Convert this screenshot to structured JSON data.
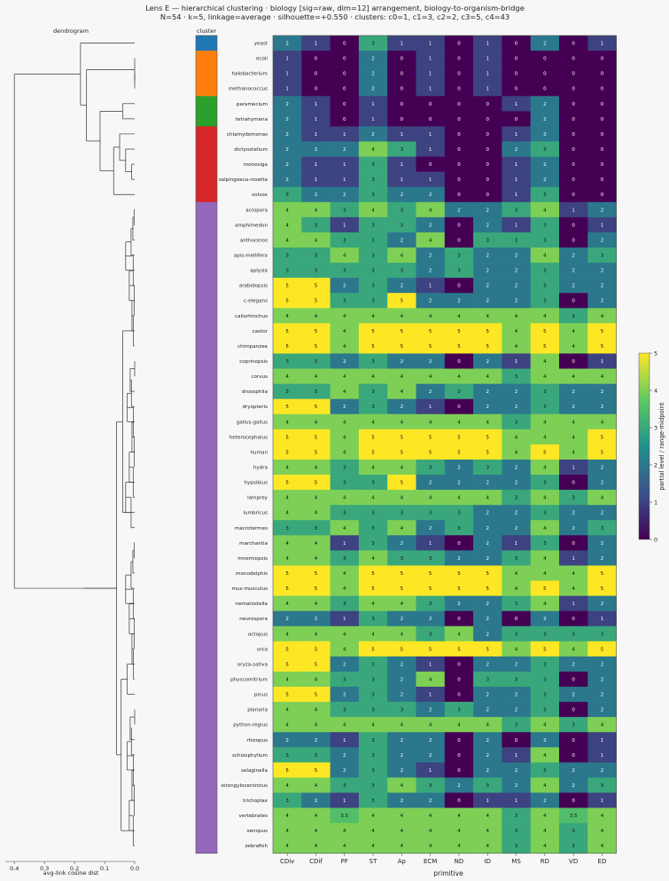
{
  "colors": {
    "viridis": [
      "#440154",
      "#3b528b",
      "#21918c",
      "#5ec962",
      "#fde725"
    ],
    "clusters": [
      "#1f77b4",
      "#ff7f0e",
      "#2ca02c",
      "#d62728",
      "#9467bd"
    ],
    "dendro_line": "#333333"
  },
  "chart_data": {
    "type": "heatmap",
    "title_line1": "Lens E — hierarchical clustering · biology [sig=raw, dim=12] arrangement, biology-to-organism-bridge",
    "title_line2": "N=54 · k=5, linkage=average · silhouette=+0.550 · clusters: c0=1, c1=3, c2=2, c3=5, c4=43",
    "dendrogram_title": "dendrogram",
    "dendrogram_xlabel": "avg-link cosine dist",
    "dendrogram_ticks": [
      "0.4",
      "0.3",
      "0.2",
      "0.1",
      "0.0"
    ],
    "dendrogram_range": [
      0.43,
      0.0
    ],
    "cluster_title": "cluster",
    "xlabel": "primitive",
    "colorbar_label": "partial level / range-midpoint",
    "colorbar_ticks": [
      "0",
      "1",
      "2",
      "3",
      "4",
      "5"
    ],
    "vmin": 0,
    "vmax": 5,
    "columns": [
      "CDiv",
      "CDif",
      "PF",
      "ST",
      "Ap",
      "ECM",
      "ND",
      "ID",
      "MS",
      "RD",
      "VD",
      "ED"
    ],
    "rows": [
      "yeast",
      "ecoli",
      "halobacterium",
      "methanococcus",
      "paramecium",
      "tetrahymena",
      "chlamydomonas",
      "dictyostelium",
      "monosiga",
      "salpingoeca-rosetta",
      "volvox",
      "acropora",
      "amphimedon",
      "anthoceros",
      "apis-mellifera",
      "aplysia",
      "arabidopsis",
      "c-elegans",
      "callorhinchus",
      "castor",
      "chimpanzee",
      "coprinopsis",
      "corvus",
      "drosophila",
      "dryopteris",
      "gallus-gallus",
      "heterocephalus",
      "human",
      "hydra",
      "hypsibius",
      "lamprey",
      "lumbricus",
      "macrotermes",
      "marchantia",
      "mnemiopsis",
      "monodelphis",
      "mus-musculus",
      "nematostella",
      "neurospora",
      "octopus",
      "orca",
      "oryza-sativa",
      "physcomitrium",
      "pinus",
      "planaria",
      "python-regius",
      "rhizopus",
      "schizophyllum",
      "selaginella",
      "strongylocentrotus",
      "trichoplax",
      "vertebrates",
      "xenopus",
      "zebrafish"
    ],
    "row_clusters": [
      0,
      1,
      1,
      1,
      2,
      2,
      3,
      3,
      3,
      3,
      3,
      4,
      4,
      4,
      4,
      4,
      4,
      4,
      4,
      4,
      4,
      4,
      4,
      4,
      4,
      4,
      4,
      4,
      4,
      4,
      4,
      4,
      4,
      4,
      4,
      4,
      4,
      4,
      4,
      4,
      4,
      4,
      4,
      4,
      4,
      4,
      4,
      4,
      4,
      4,
      4,
      4,
      4,
      4
    ],
    "values": [
      [
        2,
        1,
        0,
        3,
        1,
        1,
        0,
        1,
        0,
        2,
        0,
        1
      ],
      [
        1,
        0,
        0,
        2,
        0,
        1,
        0,
        1,
        0,
        0,
        0,
        0
      ],
      [
        1,
        0,
        0,
        2,
        0,
        1,
        0,
        1,
        0,
        0,
        0,
        0
      ],
      [
        1,
        0,
        0,
        2,
        0,
        1,
        0,
        1,
        0,
        0,
        0,
        0
      ],
      [
        2,
        1,
        0,
        1,
        0,
        0,
        0,
        0,
        1,
        2,
        0,
        0
      ],
      [
        2,
        1,
        0,
        1,
        0,
        0,
        0,
        0,
        0,
        2,
        0,
        0
      ],
      [
        2,
        1,
        1,
        2,
        1,
        1,
        0,
        0,
        1,
        2,
        0,
        0
      ],
      [
        2,
        2,
        2,
        4,
        3,
        1,
        0,
        0,
        2,
        3,
        0,
        0
      ],
      [
        2,
        1,
        1,
        3,
        1,
        0,
        0,
        0,
        1,
        2,
        0,
        0
      ],
      [
        2,
        1,
        1,
        3,
        1,
        1,
        0,
        0,
        1,
        2,
        0,
        0
      ],
      [
        3,
        2,
        2,
        3,
        2,
        2,
        0,
        0,
        1,
        3,
        0,
        0
      ],
      [
        4,
        4,
        3,
        4,
        3,
        4,
        2,
        2,
        3,
        4,
        1,
        2
      ],
      [
        4,
        3,
        1,
        3,
        3,
        2,
        0,
        2,
        1,
        3,
        0,
        1
      ],
      [
        4,
        4,
        3,
        3,
        2,
        4,
        0,
        3,
        3,
        3,
        0,
        2
      ],
      [
        3,
        3,
        4,
        3,
        4,
        2,
        3,
        2,
        2,
        4,
        2,
        3
      ],
      [
        3,
        3,
        3,
        3,
        3,
        2,
        3,
        2,
        2,
        3,
        2,
        2
      ],
      [
        5,
        5,
        2,
        3,
        2,
        1,
        0,
        2,
        2,
        3,
        2,
        2
      ],
      [
        5,
        5,
        3,
        3,
        5,
        2,
        2,
        2,
        2,
        3,
        0,
        2
      ],
      [
        4,
        4,
        4,
        4,
        4,
        4,
        4,
        4,
        4,
        4,
        3,
        4
      ],
      [
        5,
        5,
        4,
        5,
        5,
        5,
        5,
        5,
        4,
        5,
        4,
        5
      ],
      [
        5,
        5,
        4,
        5,
        5,
        5,
        5,
        5,
        4,
        5,
        4,
        5
      ],
      [
        3,
        3,
        2,
        3,
        2,
        2,
        0,
        2,
        1,
        4,
        0,
        1
      ],
      [
        4,
        4,
        4,
        4,
        4,
        4,
        4,
        4,
        3,
        4,
        4,
        4
      ],
      [
        3,
        3,
        4,
        3,
        4,
        2,
        3,
        2,
        2,
        3,
        2,
        2
      ],
      [
        5,
        5,
        2,
        3,
        2,
        1,
        0,
        2,
        2,
        3,
        2,
        2
      ],
      [
        4,
        4,
        4,
        4,
        4,
        4,
        4,
        4,
        3,
        4,
        4,
        4
      ],
      [
        5,
        5,
        4,
        5,
        5,
        5,
        5,
        5,
        4,
        4,
        4,
        5
      ],
      [
        5,
        5,
        4,
        5,
        5,
        5,
        5,
        5,
        4,
        5,
        4,
        5
      ],
      [
        4,
        4,
        3,
        4,
        4,
        3,
        2,
        3,
        2,
        4,
        1,
        2
      ],
      [
        5,
        5,
        3,
        3,
        5,
        2,
        2,
        2,
        2,
        3,
        0,
        2
      ],
      [
        4,
        4,
        4,
        4,
        4,
        4,
        4,
        4,
        3,
        4,
        3,
        4
      ],
      [
        4,
        4,
        3,
        3,
        3,
        3,
        3,
        2,
        2,
        3,
        2,
        2
      ],
      [
        3,
        3,
        4,
        3,
        4,
        2,
        3,
        2,
        2,
        4,
        2,
        3
      ],
      [
        4,
        4,
        1,
        3,
        2,
        1,
        0,
        2,
        1,
        3,
        0,
        2
      ],
      [
        4,
        4,
        3,
        4,
        3,
        3,
        2,
        2,
        3,
        4,
        1,
        2
      ],
      [
        5,
        5,
        4,
        5,
        5,
        5,
        5,
        5,
        4,
        4,
        4,
        5
      ],
      [
        5,
        5,
        4,
        5,
        5,
        5,
        5,
        5,
        4,
        5,
        4,
        5
      ],
      [
        4,
        4,
        3,
        4,
        4,
        3,
        2,
        2,
        3,
        4,
        1,
        2
      ],
      [
        2,
        2,
        1,
        3,
        2,
        2,
        0,
        2,
        0,
        2,
        0,
        1
      ],
      [
        4,
        4,
        4,
        4,
        4,
        3,
        4,
        2,
        3,
        3,
        3,
        3
      ],
      [
        5,
        5,
        4,
        5,
        5,
        5,
        5,
        5,
        4,
        5,
        4,
        5
      ],
      [
        5,
        5,
        2,
        3,
        2,
        1,
        0,
        2,
        2,
        3,
        2,
        2
      ],
      [
        4,
        4,
        3,
        3,
        2,
        4,
        0,
        3,
        3,
        3,
        0,
        2
      ],
      [
        5,
        5,
        2,
        3,
        2,
        1,
        0,
        2,
        2,
        3,
        2,
        2
      ],
      [
        4,
        4,
        3,
        3,
        3,
        2,
        3,
        2,
        2,
        3,
        0,
        2
      ],
      [
        4,
        4,
        4,
        4,
        4,
        4,
        4,
        4,
        3,
        4,
        3,
        4
      ],
      [
        2,
        2,
        1,
        3,
        2,
        2,
        0,
        2,
        0,
        2,
        0,
        1
      ],
      [
        3,
        3,
        2,
        3,
        2,
        2,
        0,
        2,
        1,
        4,
        0,
        1
      ],
      [
        5,
        5,
        2,
        3,
        2,
        1,
        0,
        2,
        2,
        3,
        2,
        2
      ],
      [
        4,
        4,
        3,
        3,
        4,
        3,
        2,
        3,
        2,
        4,
        2,
        3
      ],
      [
        3,
        2,
        1,
        3,
        2,
        2,
        0,
        1,
        1,
        2,
        0,
        1
      ],
      [
        4,
        4,
        3.5,
        4,
        4,
        4,
        4,
        4,
        3,
        4,
        3.5,
        4
      ],
      [
        4,
        4,
        4,
        4,
        4,
        4,
        4,
        4,
        3,
        4,
        3,
        4
      ],
      [
        4,
        4,
        4,
        4,
        4,
        4,
        4,
        4,
        3,
        4,
        3,
        4
      ]
    ]
  }
}
